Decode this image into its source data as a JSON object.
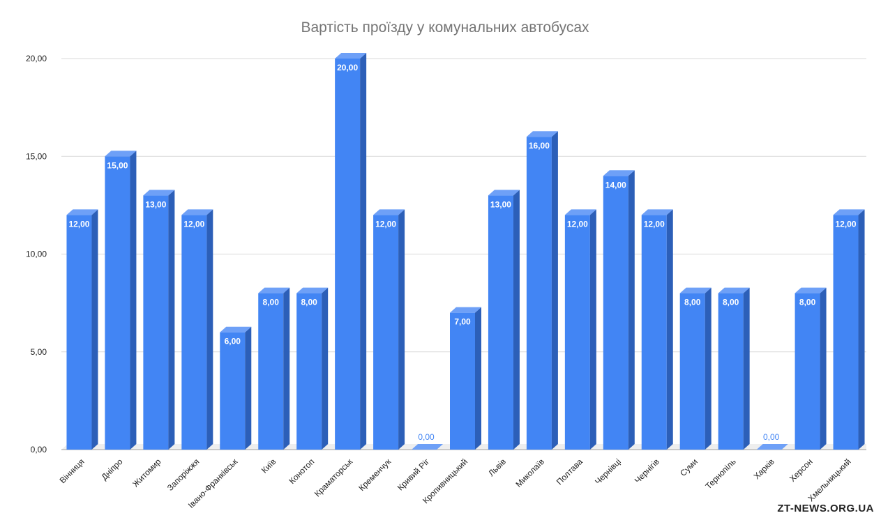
{
  "watermark": "ZT-NEWS.ORG.UA",
  "colors": {
    "bar_front": "#4285f4",
    "bar_side": "#2c5fb8",
    "bar_top": "#6ea0f7",
    "grid": "#d9d9d9",
    "floor": "#d0d0d0"
  },
  "chart_data": {
    "type": "bar",
    "title": "Вартість проїзду у комунальних автобусах",
    "xlabel": "",
    "ylabel": "",
    "ylim": [
      0,
      20
    ],
    "yticks": [
      "0,00",
      "5,00",
      "10,00",
      "15,00",
      "20,00"
    ],
    "grid": true,
    "categories": [
      "Вінниця",
      "Дніпро",
      "Житомир",
      "Запоріжжя",
      "Івано-Франківськ",
      "Київ",
      "Конотоп",
      "Краматорськ",
      "Кременчук",
      "Кривий Ріг",
      "Кропивницький",
      "Львів",
      "Миколаїв",
      "Полтава",
      "Чернівці",
      "Чернігів",
      "Суми",
      "Тернопіль",
      "Харків",
      "Херсон",
      "Хмельницький"
    ],
    "values": [
      12,
      15,
      13,
      12,
      6,
      8,
      8,
      20,
      12,
      0,
      7,
      13,
      16,
      12,
      14,
      12,
      8,
      8,
      0,
      8,
      12
    ],
    "data_labels": [
      "12,00",
      "15,00",
      "13,00",
      "12,00",
      "6,00",
      "8,00",
      "8,00",
      "20,00",
      "12,00",
      "0,00",
      "7,00",
      "13,00",
      "16,00",
      "12,00",
      "14,00",
      "12,00",
      "8,00",
      "8,00",
      "0,00",
      "8,00",
      "12,00"
    ]
  }
}
